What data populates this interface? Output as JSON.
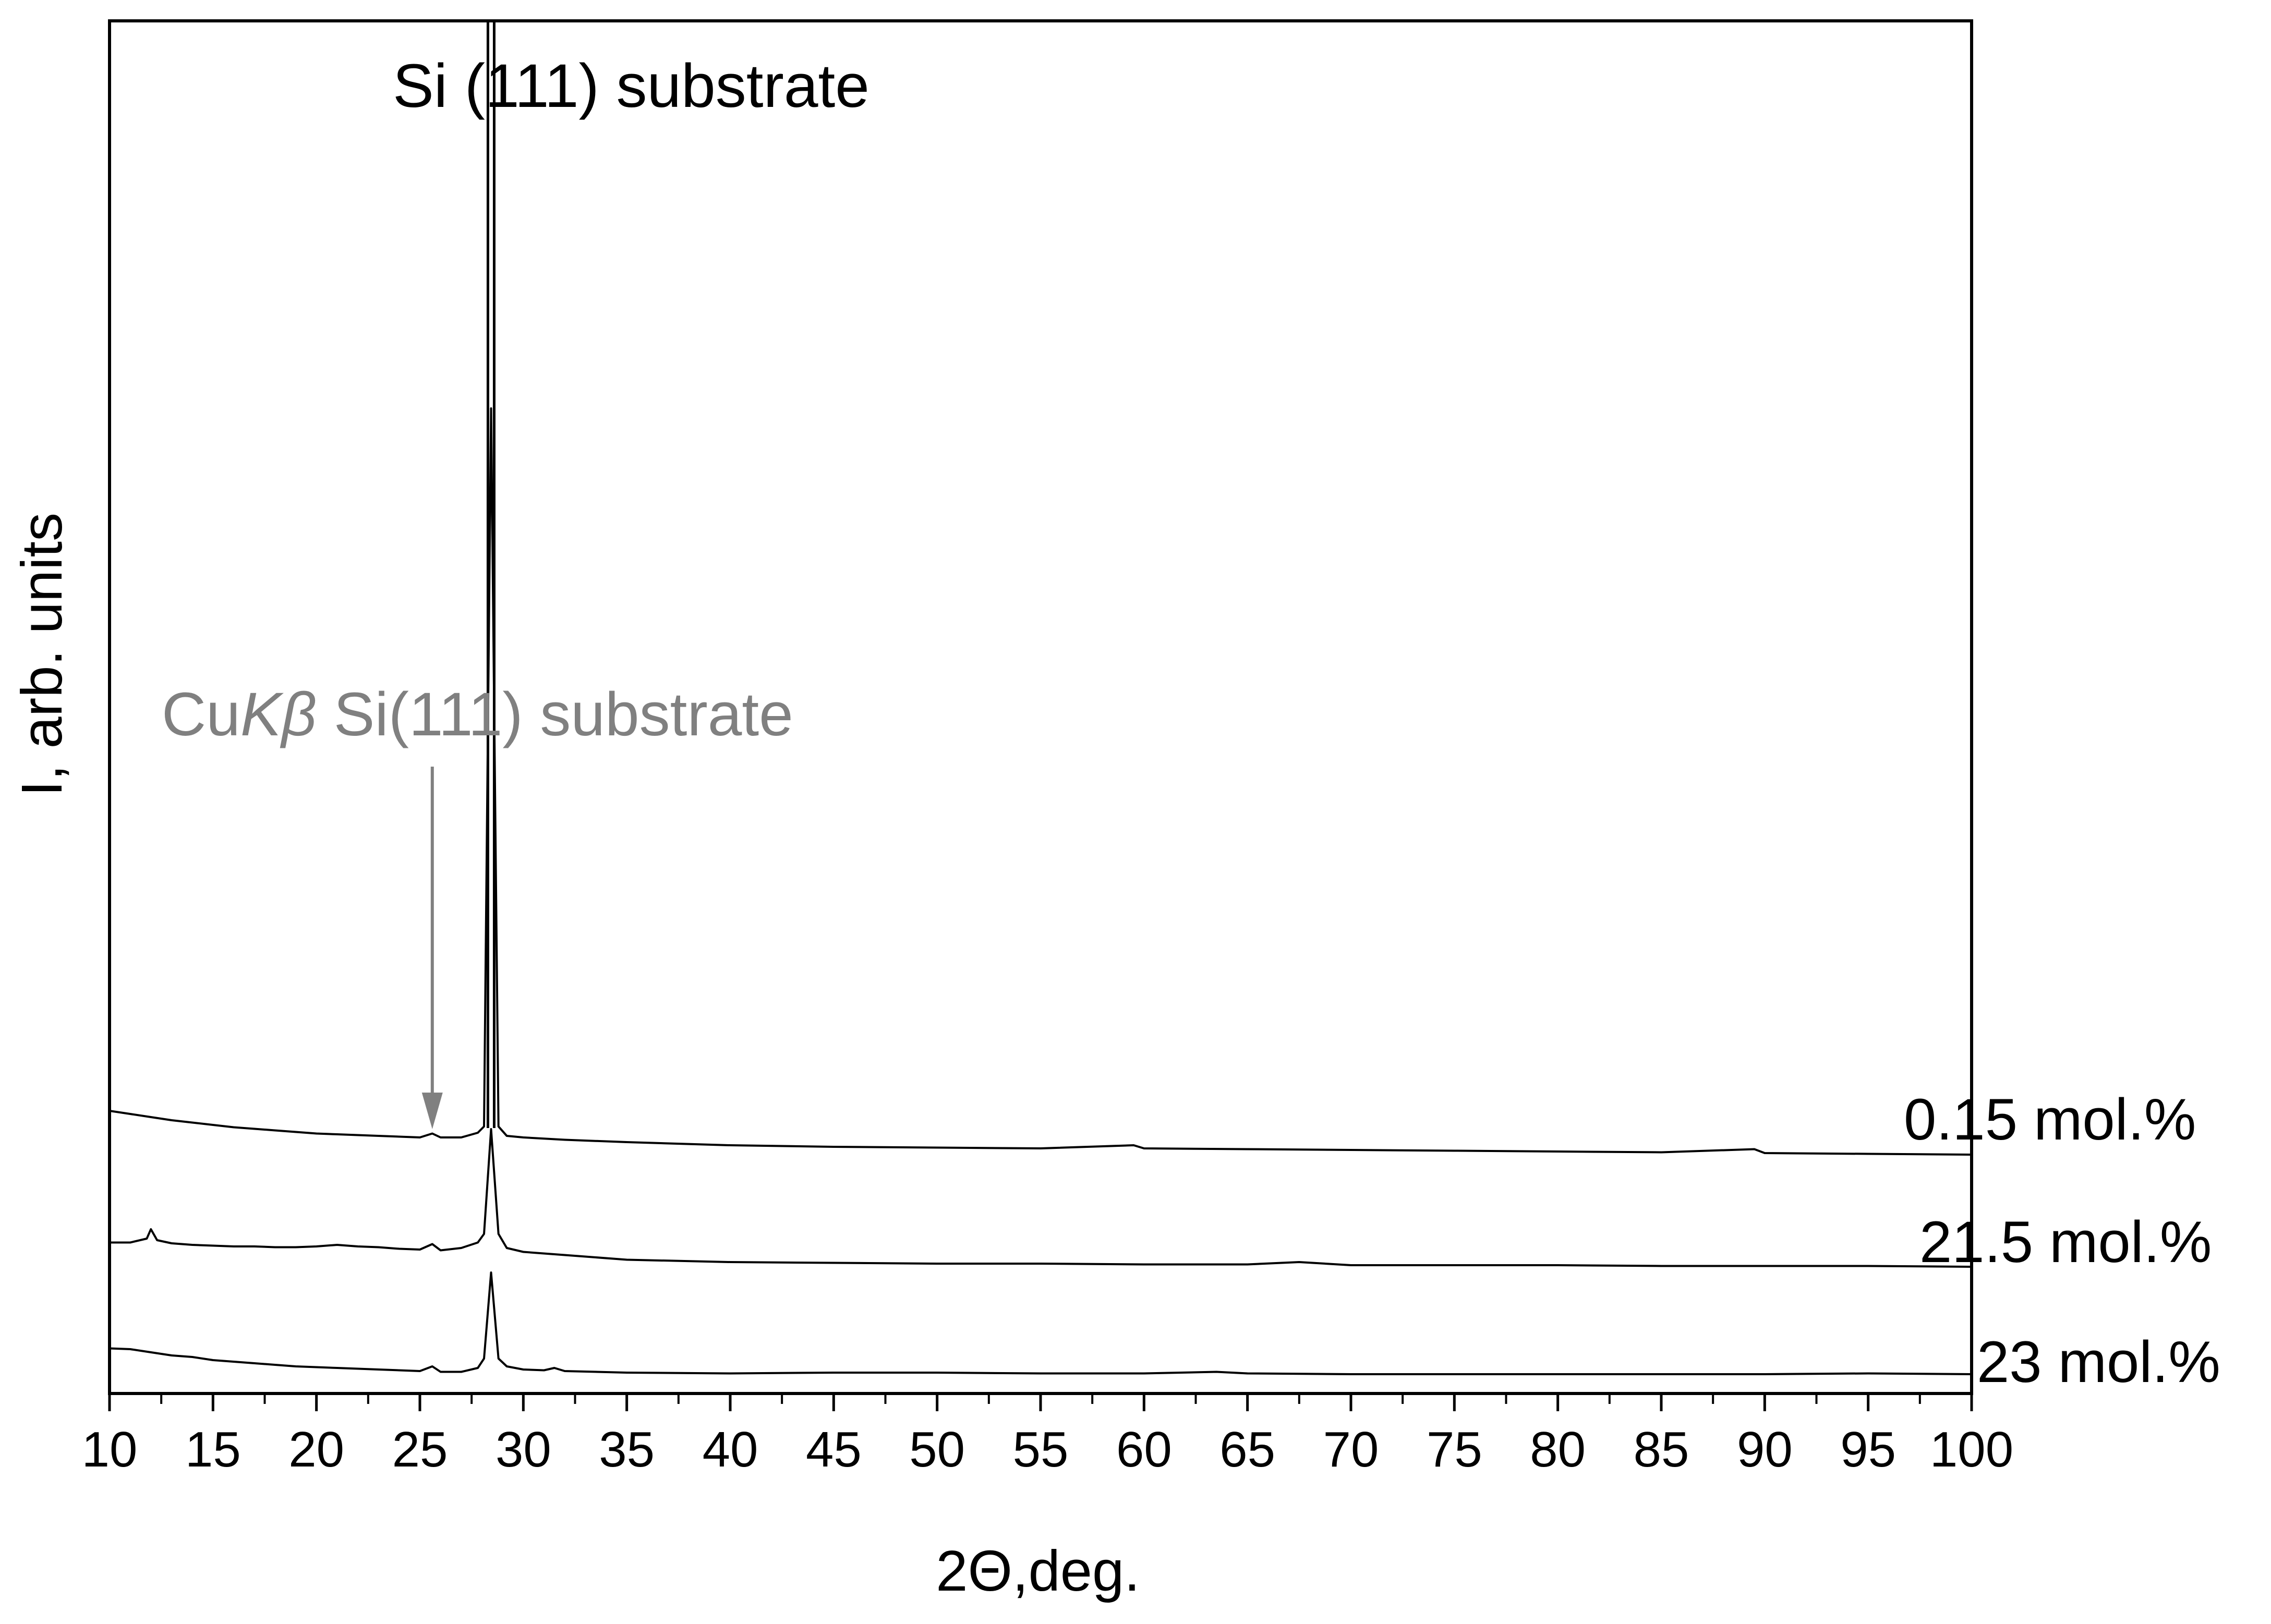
{
  "chart_data": {
    "type": "line",
    "title": "",
    "xlabel": "2Θ,deg.",
    "ylabel": "I, arb. units",
    "xlim": [
      10,
      100
    ],
    "x_ticks": [
      "10",
      "15",
      "20",
      "25",
      "30",
      "35",
      "40",
      "45",
      "50",
      "55",
      "60",
      "65",
      "70",
      "75",
      "80",
      "85",
      "90",
      "95",
      "100"
    ],
    "x_minor_step": 2.5,
    "grid": false,
    "annotations": {
      "peak_label": "Si (111) substrate",
      "peak_x": 28.44,
      "kbeta_prefix": "Cu",
      "kbeta_k": "K",
      "kbeta_beta": "β",
      "kbeta_rest": " Si(111) substrate",
      "kbeta_x": 25.6
    },
    "series": [
      {
        "name": "0.15 mol.%",
        "color": "#000000",
        "points": [
          [
            10,
            0.92
          ],
          [
            11,
            0.88
          ],
          [
            12,
            0.84
          ],
          [
            13,
            0.8
          ],
          [
            14,
            0.77
          ],
          [
            15,
            0.74
          ],
          [
            16,
            0.71
          ],
          [
            17,
            0.69
          ],
          [
            18,
            0.67
          ],
          [
            19,
            0.65
          ],
          [
            20,
            0.63
          ],
          [
            21,
            0.62
          ],
          [
            22,
            0.61
          ],
          [
            23,
            0.6
          ],
          [
            24,
            0.59
          ],
          [
            25,
            0.58
          ],
          [
            25.6,
            0.63
          ],
          [
            26,
            0.58
          ],
          [
            27,
            0.58
          ],
          [
            27.8,
            0.64
          ],
          [
            28.1,
            0.72
          ],
          [
            28.44,
            9.9
          ],
          [
            28.8,
            0.72
          ],
          [
            29.2,
            0.6
          ],
          [
            30,
            0.58
          ],
          [
            32,
            0.55
          ],
          [
            35,
            0.52
          ],
          [
            40,
            0.48
          ],
          [
            45,
            0.46
          ],
          [
            50,
            0.45
          ],
          [
            55,
            0.44
          ],
          [
            59.5,
            0.48
          ],
          [
            60,
            0.44
          ],
          [
            65,
            0.43
          ],
          [
            70,
            0.42
          ],
          [
            75,
            0.41
          ],
          [
            80,
            0.4
          ],
          [
            85,
            0.39
          ],
          [
            89.5,
            0.43
          ],
          [
            90,
            0.38
          ],
          [
            95,
            0.37
          ],
          [
            100,
            0.36
          ]
        ]
      },
      {
        "name": "21.5 mol.%",
        "color": "#000000",
        "points": [
          [
            10,
            0.55
          ],
          [
            11,
            0.55
          ],
          [
            11.8,
            0.6
          ],
          [
            12,
            0.72
          ],
          [
            12.3,
            0.58
          ],
          [
            13,
            0.54
          ],
          [
            14,
            0.52
          ],
          [
            15,
            0.51
          ],
          [
            16,
            0.5
          ],
          [
            17,
            0.5
          ],
          [
            18,
            0.49
          ],
          [
            19,
            0.49
          ],
          [
            20,
            0.5
          ],
          [
            21,
            0.52
          ],
          [
            22,
            0.5
          ],
          [
            23,
            0.49
          ],
          [
            24,
            0.47
          ],
          [
            25,
            0.46
          ],
          [
            25.6,
            0.53
          ],
          [
            26,
            0.45
          ],
          [
            27,
            0.48
          ],
          [
            27.8,
            0.55
          ],
          [
            28.1,
            0.66
          ],
          [
            28.44,
            2.0
          ],
          [
            28.8,
            0.66
          ],
          [
            29.2,
            0.48
          ],
          [
            30,
            0.43
          ],
          [
            32,
            0.39
          ],
          [
            35,
            0.33
          ],
          [
            40,
            0.3
          ],
          [
            45,
            0.29
          ],
          [
            50,
            0.28
          ],
          [
            55,
            0.28
          ],
          [
            60,
            0.27
          ],
          [
            65,
            0.27
          ],
          [
            67.5,
            0.3
          ],
          [
            70,
            0.26
          ],
          [
            75,
            0.26
          ],
          [
            80,
            0.26
          ],
          [
            85,
            0.25
          ],
          [
            90,
            0.25
          ],
          [
            95,
            0.25
          ],
          [
            100,
            0.24
          ]
        ]
      },
      {
        "name": "23 mol.%",
        "color": "#000000",
        "points": [
          [
            10,
            0.33
          ],
          [
            11,
            0.32
          ],
          [
            12,
            0.28
          ],
          [
            13,
            0.24
          ],
          [
            14,
            0.22
          ],
          [
            15,
            0.18
          ],
          [
            16,
            0.16
          ],
          [
            17,
            0.14
          ],
          [
            18,
            0.12
          ],
          [
            19,
            0.1
          ],
          [
            20,
            0.09
          ],
          [
            21,
            0.08
          ],
          [
            22,
            0.07
          ],
          [
            23,
            0.06
          ],
          [
            24,
            0.05
          ],
          [
            25,
            0.04
          ],
          [
            25.6,
            0.1
          ],
          [
            26,
            0.03
          ],
          [
            27,
            0.03
          ],
          [
            27.8,
            0.08
          ],
          [
            28.1,
            0.2
          ],
          [
            28.44,
            1.3
          ],
          [
            28.8,
            0.2
          ],
          [
            29.2,
            0.1
          ],
          [
            30,
            0.06
          ],
          [
            31,
            0.05
          ],
          [
            31.5,
            0.08
          ],
          [
            32,
            0.04
          ],
          [
            35,
            0.02
          ],
          [
            40,
            0.01
          ],
          [
            45,
            0.02
          ],
          [
            50,
            0.02
          ],
          [
            55,
            0.01
          ],
          [
            60,
            0.01
          ],
          [
            63.5,
            0.03
          ],
          [
            65,
            0.01
          ],
          [
            70,
            0.0
          ],
          [
            75,
            0.0
          ],
          [
            80,
            0.0
          ],
          [
            85,
            0.0
          ],
          [
            90,
            0.0
          ],
          [
            95,
            0.01
          ],
          [
            100,
            0.0
          ]
        ]
      }
    ]
  }
}
